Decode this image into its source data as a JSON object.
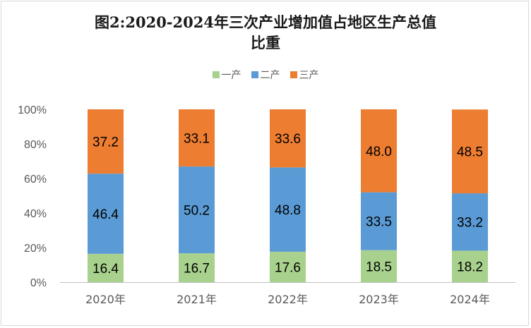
{
  "chart_data": {
    "type": "bar",
    "stacked": true,
    "title": "图2:2020-2024年三次产业增加值占地区生产总值",
    "title_line2": "比重",
    "categories": [
      "2020年",
      "2021年",
      "2022年",
      "2023年",
      "2024年"
    ],
    "series": [
      {
        "name": "一产",
        "color": "#a9d18e",
        "values": [
          16.4,
          16.7,
          17.6,
          18.5,
          18.2
        ]
      },
      {
        "name": "二产",
        "color": "#5b9bd5",
        "values": [
          46.4,
          50.2,
          48.8,
          33.5,
          33.2
        ]
      },
      {
        "name": "三产",
        "color": "#ed7d31",
        "values": [
          37.2,
          33.1,
          33.6,
          48.0,
          48.5
        ]
      }
    ],
    "data_labels": [
      [
        "16.4",
        "16.7",
        "17.6",
        "18.5",
        "18.2"
      ],
      [
        "46.4",
        "50.2",
        "48.8",
        "33.5",
        "33.2"
      ],
      [
        "37.2",
        "33.1",
        "33.6",
        "48.0",
        "48.5"
      ]
    ],
    "ylim": [
      0,
      100
    ],
    "yticks": [
      0,
      20,
      40,
      60,
      80,
      100
    ],
    "ytick_labels": [
      "0%",
      "20%",
      "40%",
      "60%",
      "80%",
      "100%"
    ],
    "xlabel": "",
    "ylabel": "",
    "grid": false,
    "legend_position": "top"
  }
}
